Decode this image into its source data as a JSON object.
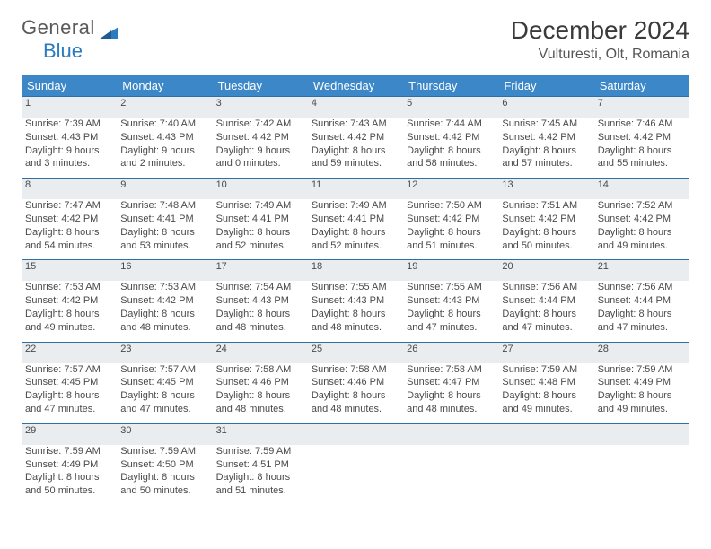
{
  "brand": {
    "word1": "General",
    "word2": "Blue"
  },
  "title": "December 2024",
  "location": "Vulturesti, Olt, Romania",
  "colors": {
    "header_bg": "#3b87c8",
    "header_text": "#ffffff",
    "daynum_bg": "#e9edf0",
    "row_divider": "#2f6fa3",
    "brand_dark": "#5a5a5a",
    "brand_blue": "#2a7bbf",
    "body_text": "#4a4a4a"
  },
  "day_headers": [
    "Sunday",
    "Monday",
    "Tuesday",
    "Wednesday",
    "Thursday",
    "Friday",
    "Saturday"
  ],
  "weeks": [
    [
      {
        "n": "1",
        "sr": "7:39 AM",
        "ss": "4:43 PM",
        "dl": "9 hours and 3 minutes."
      },
      {
        "n": "2",
        "sr": "7:40 AM",
        "ss": "4:43 PM",
        "dl": "9 hours and 2 minutes."
      },
      {
        "n": "3",
        "sr": "7:42 AM",
        "ss": "4:42 PM",
        "dl": "9 hours and 0 minutes."
      },
      {
        "n": "4",
        "sr": "7:43 AM",
        "ss": "4:42 PM",
        "dl": "8 hours and 59 minutes."
      },
      {
        "n": "5",
        "sr": "7:44 AM",
        "ss": "4:42 PM",
        "dl": "8 hours and 58 minutes."
      },
      {
        "n": "6",
        "sr": "7:45 AM",
        "ss": "4:42 PM",
        "dl": "8 hours and 57 minutes."
      },
      {
        "n": "7",
        "sr": "7:46 AM",
        "ss": "4:42 PM",
        "dl": "8 hours and 55 minutes."
      }
    ],
    [
      {
        "n": "8",
        "sr": "7:47 AM",
        "ss": "4:42 PM",
        "dl": "8 hours and 54 minutes."
      },
      {
        "n": "9",
        "sr": "7:48 AM",
        "ss": "4:41 PM",
        "dl": "8 hours and 53 minutes."
      },
      {
        "n": "10",
        "sr": "7:49 AM",
        "ss": "4:41 PM",
        "dl": "8 hours and 52 minutes."
      },
      {
        "n": "11",
        "sr": "7:49 AM",
        "ss": "4:41 PM",
        "dl": "8 hours and 52 minutes."
      },
      {
        "n": "12",
        "sr": "7:50 AM",
        "ss": "4:42 PM",
        "dl": "8 hours and 51 minutes."
      },
      {
        "n": "13",
        "sr": "7:51 AM",
        "ss": "4:42 PM",
        "dl": "8 hours and 50 minutes."
      },
      {
        "n": "14",
        "sr": "7:52 AM",
        "ss": "4:42 PM",
        "dl": "8 hours and 49 minutes."
      }
    ],
    [
      {
        "n": "15",
        "sr": "7:53 AM",
        "ss": "4:42 PM",
        "dl": "8 hours and 49 minutes."
      },
      {
        "n": "16",
        "sr": "7:53 AM",
        "ss": "4:42 PM",
        "dl": "8 hours and 48 minutes."
      },
      {
        "n": "17",
        "sr": "7:54 AM",
        "ss": "4:43 PM",
        "dl": "8 hours and 48 minutes."
      },
      {
        "n": "18",
        "sr": "7:55 AM",
        "ss": "4:43 PM",
        "dl": "8 hours and 48 minutes."
      },
      {
        "n": "19",
        "sr": "7:55 AM",
        "ss": "4:43 PM",
        "dl": "8 hours and 47 minutes."
      },
      {
        "n": "20",
        "sr": "7:56 AM",
        "ss": "4:44 PM",
        "dl": "8 hours and 47 minutes."
      },
      {
        "n": "21",
        "sr": "7:56 AM",
        "ss": "4:44 PM",
        "dl": "8 hours and 47 minutes."
      }
    ],
    [
      {
        "n": "22",
        "sr": "7:57 AM",
        "ss": "4:45 PM",
        "dl": "8 hours and 47 minutes."
      },
      {
        "n": "23",
        "sr": "7:57 AM",
        "ss": "4:45 PM",
        "dl": "8 hours and 47 minutes."
      },
      {
        "n": "24",
        "sr": "7:58 AM",
        "ss": "4:46 PM",
        "dl": "8 hours and 48 minutes."
      },
      {
        "n": "25",
        "sr": "7:58 AM",
        "ss": "4:46 PM",
        "dl": "8 hours and 48 minutes."
      },
      {
        "n": "26",
        "sr": "7:58 AM",
        "ss": "4:47 PM",
        "dl": "8 hours and 48 minutes."
      },
      {
        "n": "27",
        "sr": "7:59 AM",
        "ss": "4:48 PM",
        "dl": "8 hours and 49 minutes."
      },
      {
        "n": "28",
        "sr": "7:59 AM",
        "ss": "4:49 PM",
        "dl": "8 hours and 49 minutes."
      }
    ],
    [
      {
        "n": "29",
        "sr": "7:59 AM",
        "ss": "4:49 PM",
        "dl": "8 hours and 50 minutes."
      },
      {
        "n": "30",
        "sr": "7:59 AM",
        "ss": "4:50 PM",
        "dl": "8 hours and 50 minutes."
      },
      {
        "n": "31",
        "sr": "7:59 AM",
        "ss": "4:51 PM",
        "dl": "8 hours and 51 minutes."
      },
      null,
      null,
      null,
      null
    ]
  ],
  "labels": {
    "sunrise": "Sunrise:",
    "sunset": "Sunset:",
    "daylight": "Daylight:"
  }
}
